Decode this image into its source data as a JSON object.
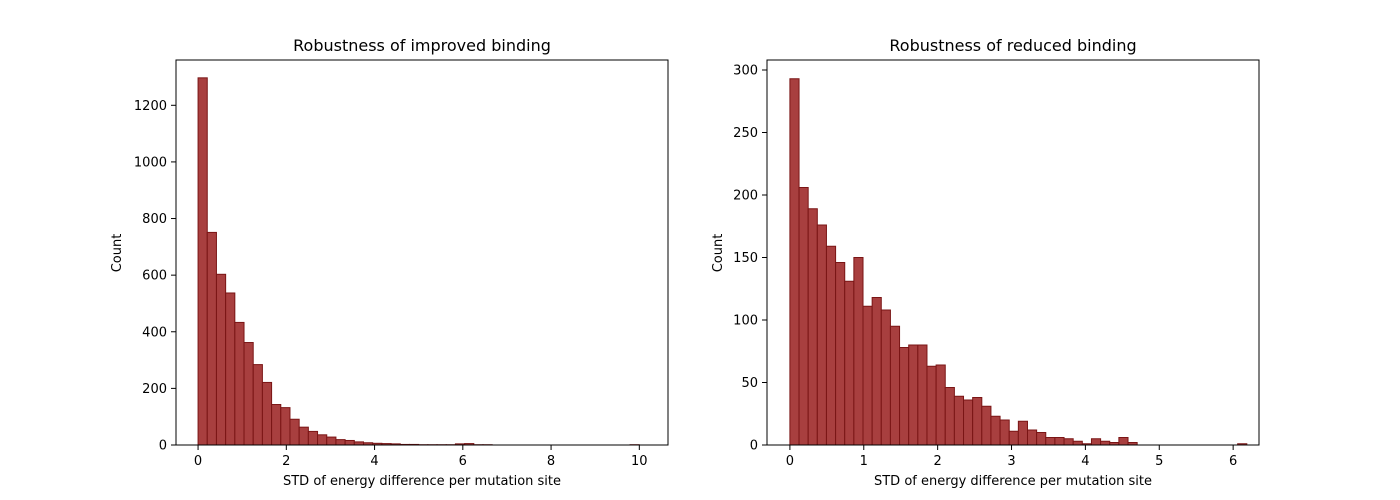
{
  "colors": {
    "bar_fill": "#a83f3f",
    "bar_edge": "#7a1515"
  },
  "chart_data": [
    {
      "type": "bar",
      "title": "Robustness of improved binding",
      "xlabel": "STD of energy difference per mutation site",
      "ylabel": "Count",
      "xlim": [
        -0.5,
        10.65
      ],
      "ylim": [
        0,
        1360
      ],
      "xticks": [
        0,
        2,
        4,
        6,
        8,
        10
      ],
      "yticks": [
        0,
        200,
        400,
        600,
        800,
        1000,
        1200
      ],
      "bin_start": 0.0,
      "bin_width": 0.2083,
      "values": [
        1297,
        751,
        603,
        537,
        433,
        362,
        284,
        221,
        143,
        132,
        91,
        63,
        48,
        36,
        28,
        19,
        16,
        11,
        8,
        6,
        5,
        4,
        2,
        2,
        1,
        1,
        1,
        1,
        4,
        5,
        1,
        1,
        0,
        0,
        0,
        0,
        0,
        0,
        0,
        0,
        0,
        0,
        0,
        0,
        0,
        0,
        0,
        1,
        0
      ]
    },
    {
      "type": "bar",
      "title": "Robustness of reduced binding",
      "xlabel": "STD of energy difference per mutation site",
      "ylabel": "Count",
      "xlim": [
        -0.31,
        6.35
      ],
      "ylim": [
        0,
        308
      ],
      "xticks": [
        0,
        1,
        2,
        3,
        4,
        5,
        6
      ],
      "yticks": [
        0,
        50,
        100,
        150,
        200,
        250,
        300
      ],
      "bin_start": 0.0,
      "bin_width": 0.1237,
      "values": [
        293,
        206,
        189,
        176,
        159,
        146,
        131,
        150,
        111,
        118,
        108,
        95,
        78,
        80,
        80,
        63,
        64,
        46,
        39,
        36,
        38,
        31,
        23,
        20,
        11,
        19,
        12,
        10,
        6,
        6,
        5,
        3,
        1,
        5,
        3,
        2,
        6,
        2,
        0,
        0,
        0,
        0,
        0,
        0,
        0,
        0,
        0,
        0,
        0,
        1
      ]
    }
  ]
}
